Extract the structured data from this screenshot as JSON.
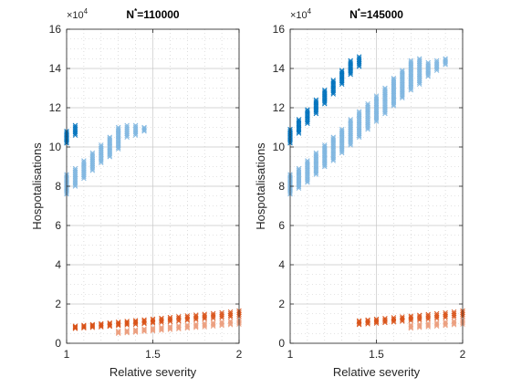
{
  "colors": {
    "dark_blue": "#0072bd",
    "light_blue": "#7fb6e0",
    "dark_orange": "#d95319",
    "light_orange": "#eca080",
    "axis": "#262626",
    "grid": "#c8c8c8"
  },
  "chart_data": [
    {
      "type": "scatter",
      "title": "N^*=110000",
      "title_main": "N",
      "title_sup": "*",
      "title_rest": "=110000",
      "xlabel": "Relative severity",
      "ylabel": "Hospotalisations",
      "y_exponent": "×10",
      "y_exponent_power": "4",
      "xlim": [
        1,
        2
      ],
      "ylim": [
        0,
        16
      ],
      "xticks": [
        "1",
        "1.5",
        "2"
      ],
      "yticks": [
        "0",
        "2",
        "4",
        "6",
        "8",
        "10",
        "12",
        "14",
        "16"
      ],
      "grid": true,
      "series": [
        {
          "color": "dark_blue",
          "marker": "x",
          "x": [
            1.0,
            1.05
          ],
          "ymin": [
            10.2,
            10.6
          ],
          "ymax": [
            10.8,
            11.1
          ]
        },
        {
          "color": "light_blue",
          "marker": "x",
          "x": [
            1.0,
            1.05,
            1.1,
            1.15,
            1.2,
            1.25,
            1.3,
            1.35,
            1.4,
            1.45
          ],
          "ymin": [
            7.6,
            8.0,
            8.4,
            8.8,
            9.2,
            9.5,
            9.9,
            10.5,
            10.6,
            10.8
          ],
          "ymax": [
            8.6,
            8.9,
            9.3,
            9.7,
            10.1,
            10.5,
            11.0,
            11.1,
            11.1,
            11.0
          ]
        },
        {
          "color": "dark_orange",
          "marker": "x",
          "x": [
            1.05,
            1.1,
            1.15,
            1.2,
            1.25,
            1.3,
            1.35,
            1.4,
            1.45,
            1.5,
            1.55,
            1.6,
            1.65,
            1.7,
            1.75,
            1.8,
            1.85,
            1.9,
            1.95,
            2.0
          ],
          "ymin": [
            0.75,
            0.78,
            0.8,
            0.83,
            0.86,
            0.9,
            0.93,
            0.96,
            1.0,
            1.03,
            1.06,
            1.1,
            1.13,
            1.17,
            1.2,
            1.24,
            1.27,
            1.3,
            1.34,
            1.38
          ],
          "ymax": [
            0.88,
            0.92,
            0.96,
            1.0,
            1.04,
            1.08,
            1.12,
            1.16,
            1.2,
            1.24,
            1.28,
            1.32,
            1.36,
            1.4,
            1.44,
            1.48,
            1.52,
            1.56,
            1.6,
            1.65
          ]
        },
        {
          "color": "light_orange",
          "marker": "x",
          "x": [
            1.3,
            1.35,
            1.4,
            1.45,
            1.5,
            1.55,
            1.6,
            1.65,
            1.7,
            1.75,
            1.8,
            1.85,
            1.9,
            1.95,
            2.0
          ],
          "ymin": [
            0.5,
            0.53,
            0.56,
            0.6,
            0.63,
            0.66,
            0.7,
            0.73,
            0.77,
            0.8,
            0.83,
            0.87,
            0.9,
            0.94,
            0.97
          ],
          "ymax": [
            0.62,
            0.66,
            0.7,
            0.74,
            0.78,
            0.82,
            0.86,
            0.9,
            0.94,
            0.98,
            1.02,
            1.06,
            1.1,
            1.14,
            1.18
          ]
        }
      ]
    },
    {
      "type": "scatter",
      "title": "N^*=145000",
      "title_main": "N",
      "title_sup": "*",
      "title_rest": "=145000",
      "xlabel": "Relative severity",
      "ylabel": "Hospotalisations",
      "y_exponent": "×10",
      "y_exponent_power": "4",
      "xlim": [
        1,
        2
      ],
      "ylim": [
        0,
        16
      ],
      "xticks": [
        "1",
        "1.5",
        "2"
      ],
      "yticks": [
        "0",
        "2",
        "4",
        "6",
        "8",
        "10",
        "12",
        "14",
        "16"
      ],
      "grid": true,
      "series": [
        {
          "color": "dark_blue",
          "marker": "x",
          "x": [
            1.0,
            1.05,
            1.1,
            1.15,
            1.2,
            1.25,
            1.3,
            1.35,
            1.4
          ],
          "ymin": [
            10.2,
            10.7,
            11.2,
            11.7,
            12.2,
            12.7,
            13.2,
            13.7,
            14.1
          ],
          "ymax": [
            10.9,
            11.4,
            11.9,
            12.4,
            12.9,
            13.4,
            13.9,
            14.4,
            14.6
          ]
        },
        {
          "color": "light_blue",
          "marker": "x",
          "x": [
            1.0,
            1.05,
            1.1,
            1.15,
            1.2,
            1.25,
            1.3,
            1.35,
            1.4,
            1.45,
            1.5,
            1.55,
            1.6,
            1.65,
            1.7,
            1.75,
            1.8,
            1.85,
            1.9
          ],
          "ymin": [
            7.6,
            7.9,
            8.2,
            8.6,
            9.0,
            9.3,
            9.7,
            10.1,
            10.5,
            10.9,
            11.3,
            11.7,
            12.1,
            12.5,
            12.9,
            13.2,
            13.6,
            13.9,
            14.2
          ],
          "ymax": [
            8.6,
            8.9,
            9.3,
            9.7,
            10.1,
            10.5,
            10.9,
            11.4,
            11.8,
            12.2,
            12.6,
            13.0,
            13.5,
            13.9,
            14.4,
            14.5,
            14.3,
            14.4,
            14.5
          ]
        },
        {
          "color": "dark_orange",
          "marker": "x",
          "x": [
            1.4,
            1.45,
            1.5,
            1.55,
            1.6,
            1.65,
            1.7,
            1.75,
            1.8,
            1.85,
            1.9,
            1.95,
            2.0
          ],
          "ymin": [
            0.95,
            0.98,
            1.02,
            1.05,
            1.08,
            1.12,
            1.15,
            1.18,
            1.22,
            1.26,
            1.3,
            1.33,
            1.37
          ],
          "ymax": [
            1.15,
            1.19,
            1.23,
            1.27,
            1.31,
            1.35,
            1.39,
            1.43,
            1.47,
            1.51,
            1.55,
            1.6,
            1.65
          ]
        },
        {
          "color": "light_orange",
          "marker": "x",
          "x": [
            1.7,
            1.75,
            1.8,
            1.85,
            1.9,
            1.95,
            2.0
          ],
          "ymin": [
            0.77,
            0.8,
            0.84,
            0.87,
            0.9,
            0.94,
            0.97
          ],
          "ymax": [
            0.94,
            0.98,
            1.02,
            1.06,
            1.1,
            1.14,
            1.18
          ]
        }
      ]
    }
  ]
}
